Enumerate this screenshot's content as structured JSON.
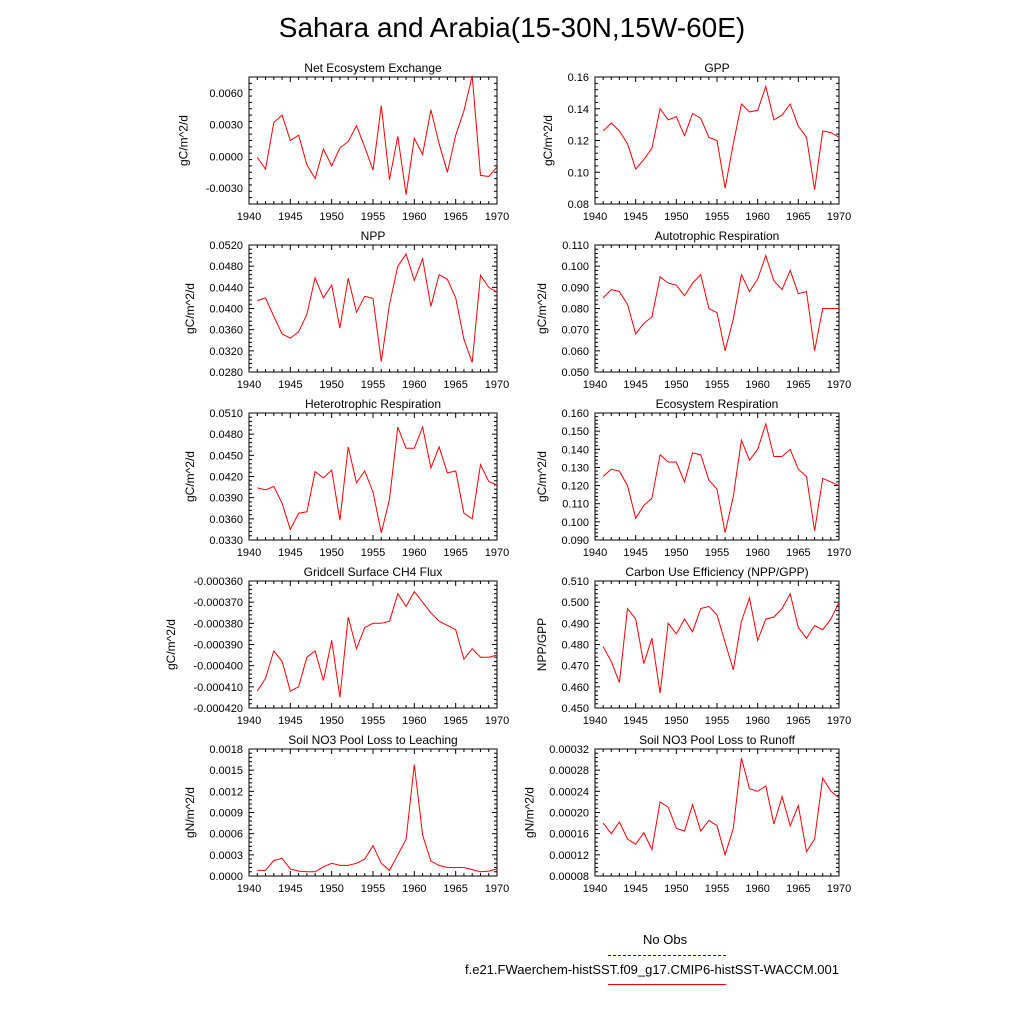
{
  "title": "Sahara and Arabia(15-30N,15W-60E)",
  "colors": {
    "series": "#ff0000",
    "obs": "#0000ff",
    "axis": "#000000"
  },
  "legend": {
    "obs_label": "No Obs",
    "model_label": "f.e21.FWaerchem-histSST.f09_g17.CMIP6-histSST-WACCM.001"
  },
  "chart_data": [
    {
      "type": "line",
      "title": "Net Ecosystem Exchange",
      "ylabel": "gC/m^2/d",
      "xlim": [
        1940,
        1970
      ],
      "ylim": [
        -0.0045,
        0.0075
      ],
      "xticks": [
        1940,
        1945,
        1950,
        1955,
        1960,
        1965,
        1970
      ],
      "yticks": [
        -0.003,
        0.0,
        0.003,
        0.006
      ],
      "ytick_labels": [
        "-0.0030",
        "0.0000",
        "0.0030",
        "0.0060"
      ],
      "x": [
        1941,
        1942,
        1943,
        1944,
        1945,
        1946,
        1947,
        1948,
        1949,
        1950,
        1951,
        1952,
        1953,
        1954,
        1955,
        1956,
        1957,
        1958,
        1959,
        1960,
        1961,
        1962,
        1963,
        1964,
        1965,
        1966,
        1967,
        1968,
        1969,
        1970
      ],
      "y": [
        -0.0001,
        -0.0012,
        0.0032,
        0.0039,
        0.0015,
        0.002,
        -0.0008,
        -0.0021,
        0.0007,
        -0.0009,
        0.0008,
        0.0014,
        0.0029,
        0.0009,
        -0.0013,
        0.0048,
        -0.0022,
        0.0019,
        -0.0036,
        0.0017,
        0.0002,
        0.0044,
        0.0012,
        -0.0015,
        0.002,
        0.0043,
        0.0076,
        -0.0018,
        -0.0019,
        -0.001
      ]
    },
    {
      "type": "line",
      "title": "GPP",
      "ylabel": "gC/m^2/d",
      "xlim": [
        1940,
        1970
      ],
      "ylim": [
        0.08,
        0.16
      ],
      "xticks": [
        1940,
        1945,
        1950,
        1955,
        1960,
        1965,
        1970
      ],
      "yticks": [
        0.08,
        0.1,
        0.12,
        0.14,
        0.16
      ],
      "ytick_labels": [
        "0.08",
        "0.10",
        "0.12",
        "0.14",
        "0.16"
      ],
      "x": [
        1941,
        1942,
        1943,
        1944,
        1945,
        1946,
        1947,
        1948,
        1949,
        1950,
        1951,
        1952,
        1953,
        1954,
        1955,
        1956,
        1957,
        1958,
        1959,
        1960,
        1961,
        1962,
        1963,
        1964,
        1965,
        1966,
        1967,
        1968,
        1969,
        1970
      ],
      "y": [
        0.126,
        0.131,
        0.126,
        0.118,
        0.102,
        0.108,
        0.115,
        0.14,
        0.133,
        0.135,
        0.123,
        0.137,
        0.134,
        0.122,
        0.12,
        0.09,
        0.118,
        0.143,
        0.138,
        0.139,
        0.154,
        0.133,
        0.136,
        0.143,
        0.129,
        0.122,
        0.089,
        0.126,
        0.125,
        0.122
      ]
    },
    {
      "type": "line",
      "title": "NPP",
      "ylabel": "gC/m^2/d",
      "xlim": [
        1940,
        1970
      ],
      "ylim": [
        0.028,
        0.052
      ],
      "xticks": [
        1940,
        1945,
        1950,
        1955,
        1960,
        1965,
        1970
      ],
      "yticks": [
        0.028,
        0.032,
        0.036,
        0.04,
        0.044,
        0.048,
        0.052
      ],
      "ytick_labels": [
        "0.0280",
        "0.0320",
        "0.0360",
        "0.0400",
        "0.0440",
        "0.0480",
        "0.0520"
      ],
      "x": [
        1941,
        1942,
        1943,
        1944,
        1945,
        1946,
        1947,
        1948,
        1949,
        1950,
        1951,
        1952,
        1953,
        1954,
        1955,
        1956,
        1957,
        1958,
        1959,
        1960,
        1961,
        1962,
        1963,
        1964,
        1965,
        1966,
        1967,
        1968,
        1969,
        1970
      ],
      "y": [
        0.0415,
        0.042,
        0.0385,
        0.0352,
        0.0344,
        0.0356,
        0.0389,
        0.0458,
        0.042,
        0.0444,
        0.0363,
        0.0457,
        0.0393,
        0.0423,
        0.0419,
        0.03,
        0.0408,
        0.048,
        0.0503,
        0.0453,
        0.0494,
        0.0404,
        0.0464,
        0.0455,
        0.042,
        0.0342,
        0.0298,
        0.0463,
        0.044,
        0.0431
      ]
    },
    {
      "type": "line",
      "title": "Autotrophic Respiration",
      "ylabel": "gC/m^2/d",
      "xlim": [
        1940,
        1970
      ],
      "ylim": [
        0.05,
        0.11
      ],
      "xticks": [
        1940,
        1945,
        1950,
        1955,
        1960,
        1965,
        1970
      ],
      "yticks": [
        0.05,
        0.06,
        0.07,
        0.08,
        0.09,
        0.1,
        0.11
      ],
      "ytick_labels": [
        "0.050",
        "0.060",
        "0.070",
        "0.080",
        "0.090",
        "0.100",
        "0.110"
      ],
      "x": [
        1941,
        1942,
        1943,
        1944,
        1945,
        1946,
        1947,
        1948,
        1949,
        1950,
        1951,
        1952,
        1953,
        1954,
        1955,
        1956,
        1957,
        1958,
        1959,
        1960,
        1961,
        1962,
        1963,
        1964,
        1965,
        1966,
        1967,
        1968,
        1969,
        1970
      ],
      "y": [
        0.085,
        0.089,
        0.088,
        0.082,
        0.068,
        0.073,
        0.076,
        0.095,
        0.092,
        0.091,
        0.086,
        0.092,
        0.096,
        0.08,
        0.078,
        0.06,
        0.075,
        0.096,
        0.088,
        0.094,
        0.105,
        0.093,
        0.089,
        0.098,
        0.087,
        0.088,
        0.06,
        0.08,
        0.08,
        0.08
      ]
    },
    {
      "type": "line",
      "title": "Heterotrophic Respiration",
      "ylabel": "gC/m^2/d",
      "xlim": [
        1940,
        1970
      ],
      "ylim": [
        0.033,
        0.051
      ],
      "xticks": [
        1940,
        1945,
        1950,
        1955,
        1960,
        1965,
        1970
      ],
      "yticks": [
        0.033,
        0.036,
        0.039,
        0.042,
        0.045,
        0.048,
        0.051
      ],
      "ytick_labels": [
        "0.0330",
        "0.0360",
        "0.0390",
        "0.0420",
        "0.0450",
        "0.0480",
        "0.0510"
      ],
      "x": [
        1941,
        1942,
        1943,
        1944,
        1945,
        1946,
        1947,
        1948,
        1949,
        1950,
        1951,
        1952,
        1953,
        1954,
        1955,
        1956,
        1957,
        1958,
        1959,
        1960,
        1961,
        1962,
        1963,
        1964,
        1965,
        1966,
        1967,
        1968,
        1969,
        1970
      ],
      "y": [
        0.0404,
        0.0401,
        0.0406,
        0.0382,
        0.0345,
        0.0368,
        0.037,
        0.0427,
        0.0418,
        0.0429,
        0.0358,
        0.0462,
        0.0411,
        0.0428,
        0.0398,
        0.034,
        0.0388,
        0.049,
        0.046,
        0.046,
        0.049,
        0.0432,
        0.0462,
        0.0425,
        0.0428,
        0.0368,
        0.036,
        0.0437,
        0.0413,
        0.0408
      ]
    },
    {
      "type": "line",
      "title": "Ecosystem Respiration",
      "ylabel": "gC/m^2/d",
      "xlim": [
        1940,
        1970
      ],
      "ylim": [
        0.09,
        0.16
      ],
      "xticks": [
        1940,
        1945,
        1950,
        1955,
        1960,
        1965,
        1970
      ],
      "yticks": [
        0.09,
        0.1,
        0.11,
        0.12,
        0.13,
        0.14,
        0.15,
        0.16
      ],
      "ytick_labels": [
        "0.090",
        "0.100",
        "0.110",
        "0.120",
        "0.130",
        "0.140",
        "0.150",
        "0.160"
      ],
      "x": [
        1941,
        1942,
        1943,
        1944,
        1945,
        1946,
        1947,
        1948,
        1949,
        1950,
        1951,
        1952,
        1953,
        1954,
        1955,
        1956,
        1957,
        1958,
        1959,
        1960,
        1961,
        1962,
        1963,
        1964,
        1965,
        1966,
        1967,
        1968,
        1969,
        1970
      ],
      "y": [
        0.125,
        0.129,
        0.128,
        0.12,
        0.102,
        0.109,
        0.113,
        0.137,
        0.133,
        0.133,
        0.122,
        0.138,
        0.137,
        0.123,
        0.118,
        0.094,
        0.114,
        0.145,
        0.134,
        0.14,
        0.154,
        0.136,
        0.136,
        0.14,
        0.129,
        0.125,
        0.095,
        0.124,
        0.122,
        0.12
      ]
    },
    {
      "type": "line",
      "title": "Gridcell Surface CH4 Flux",
      "ylabel": "gC/m^2/d",
      "xlim": [
        1940,
        1970
      ],
      "ylim": [
        -0.00042,
        -0.00036
      ],
      "xticks": [
        1940,
        1945,
        1950,
        1955,
        1960,
        1965,
        1970
      ],
      "yticks": [
        -0.00042,
        -0.00041,
        -0.0004,
        -0.00039,
        -0.00038,
        -0.00037,
        -0.00036
      ],
      "ytick_labels": [
        "-0.000420",
        "-0.000410",
        "-0.000400",
        "-0.000390",
        "-0.000380",
        "-0.000370",
        "-0.000360"
      ],
      "x": [
        1941,
        1942,
        1943,
        1944,
        1945,
        1946,
        1947,
        1948,
        1949,
        1950,
        1951,
        1952,
        1953,
        1954,
        1955,
        1956,
        1957,
        1958,
        1959,
        1960,
        1961,
        1962,
        1963,
        1964,
        1965,
        1966,
        1967,
        1968,
        1969,
        1970
      ],
      "y": [
        -0.000412,
        -0.000406,
        -0.000393,
        -0.000398,
        -0.000412,
        -0.00041,
        -0.000396,
        -0.000393,
        -0.000407,
        -0.000388,
        -0.000415,
        -0.000377,
        -0.000392,
        -0.000382,
        -0.00038,
        -0.00038,
        -0.000379,
        -0.000366,
        -0.000372,
        -0.000365,
        -0.00037,
        -0.000375,
        -0.000379,
        -0.000381,
        -0.000383,
        -0.000397,
        -0.000392,
        -0.000396,
        -0.000396,
        -0.000395
      ]
    },
    {
      "type": "line",
      "title": "Carbon Use Efficiency (NPP/GPP)",
      "ylabel": "NPP/GPP",
      "xlim": [
        1940,
        1970
      ],
      "ylim": [
        0.45,
        0.51
      ],
      "xticks": [
        1940,
        1945,
        1950,
        1955,
        1960,
        1965,
        1970
      ],
      "yticks": [
        0.45,
        0.46,
        0.47,
        0.48,
        0.49,
        0.5,
        0.51
      ],
      "ytick_labels": [
        "0.450",
        "0.460",
        "0.470",
        "0.480",
        "0.490",
        "0.500",
        "0.510"
      ],
      "x": [
        1941,
        1942,
        1943,
        1944,
        1945,
        1946,
        1947,
        1948,
        1949,
        1950,
        1951,
        1952,
        1953,
        1954,
        1955,
        1956,
        1957,
        1958,
        1959,
        1960,
        1961,
        1962,
        1963,
        1964,
        1965,
        1966,
        1967,
        1968,
        1969,
        1970
      ],
      "y": [
        0.479,
        0.472,
        0.462,
        0.497,
        0.492,
        0.471,
        0.483,
        0.457,
        0.49,
        0.485,
        0.492,
        0.486,
        0.497,
        0.498,
        0.494,
        0.481,
        0.468,
        0.491,
        0.502,
        0.482,
        0.492,
        0.493,
        0.497,
        0.504,
        0.488,
        0.483,
        0.489,
        0.487,
        0.492,
        0.5
      ]
    },
    {
      "type": "line",
      "title": "Soil NO3 Pool Loss to Leaching",
      "ylabel": "gN/m^2/d",
      "xlim": [
        1940,
        1970
      ],
      "ylim": [
        0.0,
        0.0018
      ],
      "xticks": [
        1940,
        1945,
        1950,
        1955,
        1960,
        1965,
        1970
      ],
      "yticks": [
        0.0,
        0.0003,
        0.0006,
        0.0009,
        0.0012,
        0.0015,
        0.0018
      ],
      "ytick_labels": [
        "0.0000",
        "0.0003",
        "0.0006",
        "0.0009",
        "0.0012",
        "0.0015",
        "0.0018"
      ],
      "x": [
        1941,
        1942,
        1943,
        1944,
        1945,
        1946,
        1947,
        1948,
        1949,
        1950,
        1951,
        1952,
        1953,
        1954,
        1955,
        1956,
        1957,
        1958,
        1959,
        1960,
        1961,
        1962,
        1963,
        1964,
        1965,
        1966,
        1967,
        1968,
        1969,
        1970
      ],
      "y": [
        8e-05,
        8e-05,
        0.00022,
        0.00025,
        0.0001,
        7e-05,
        6e-05,
        6e-05,
        0.00013,
        0.00018,
        0.00015,
        0.00015,
        0.00018,
        0.00024,
        0.00043,
        0.00018,
        8e-05,
        0.0003,
        0.00052,
        0.00158,
        0.00058,
        0.00021,
        0.00015,
        0.00012,
        0.00012,
        0.00012,
        9e-05,
        6e-05,
        7e-05,
        0.0001
      ]
    },
    {
      "type": "line",
      "title": "Soil NO3 Pool Loss to Runoff",
      "ylabel": "gN/m^2/d",
      "xlim": [
        1940,
        1970
      ],
      "ylim": [
        8e-05,
        0.00032
      ],
      "xticks": [
        1940,
        1945,
        1950,
        1955,
        1960,
        1965,
        1970
      ],
      "yticks": [
        8e-05,
        0.00012,
        0.00016,
        0.0002,
        0.00024,
        0.00028,
        0.00032
      ],
      "ytick_labels": [
        "0.00008",
        "0.00012",
        "0.00016",
        "0.00020",
        "0.00024",
        "0.00028",
        "0.00032"
      ],
      "x": [
        1941,
        1942,
        1943,
        1944,
        1945,
        1946,
        1947,
        1948,
        1949,
        1950,
        1951,
        1952,
        1953,
        1954,
        1955,
        1956,
        1957,
        1958,
        1959,
        1960,
        1961,
        1962,
        1963,
        1964,
        1965,
        1966,
        1967,
        1968,
        1969,
        1970
      ],
      "y": [
        0.00018,
        0.00016,
        0.000182,
        0.00015,
        0.00014,
        0.000162,
        0.00013,
        0.00022,
        0.00021,
        0.00017,
        0.000165,
        0.000215,
        0.000165,
        0.000185,
        0.000175,
        0.00012,
        0.00017,
        0.000303,
        0.000245,
        0.00024,
        0.00025,
        0.000178,
        0.00023,
        0.000175,
        0.000213,
        0.000126,
        0.00015,
        0.000265,
        0.00024,
        0.000228
      ]
    }
  ]
}
